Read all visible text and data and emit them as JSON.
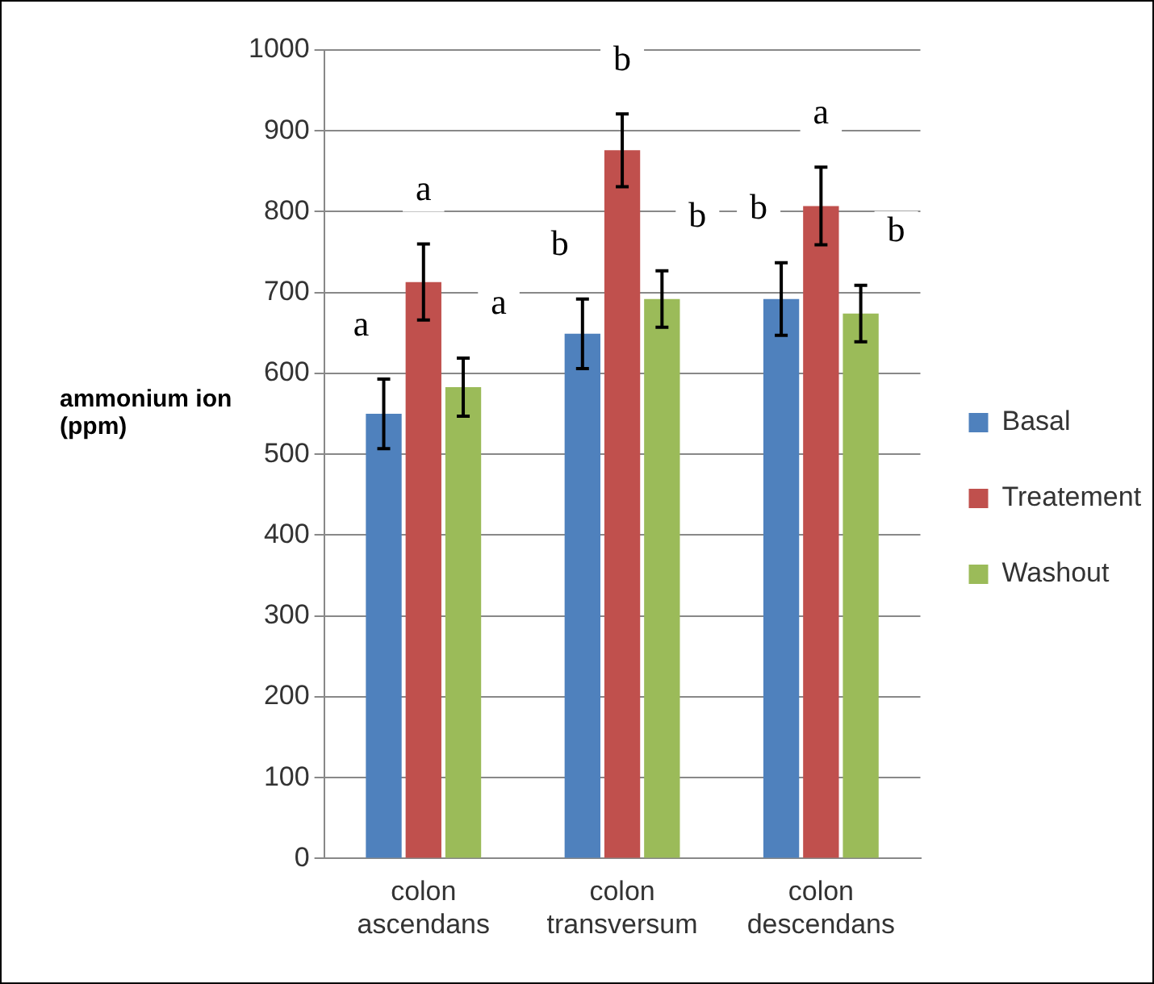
{
  "chart_data": {
    "type": "bar",
    "ylabel": "ammonium ion (ppm)",
    "categories": [
      "colon ascendans",
      "colon transversum",
      "colon descendans"
    ],
    "series": [
      {
        "name": "Basal",
        "color": "#4f81bd",
        "values": [
          550,
          649,
          692
        ],
        "errors": [
          43,
          43,
          45
        ]
      },
      {
        "name": "Treatement",
        "color": "#c0504d",
        "values": [
          713,
          876,
          807
        ],
        "errors": [
          47,
          45,
          48
        ]
      },
      {
        "name": "Washout",
        "color": "#9bbb59",
        "values": [
          583,
          692,
          674
        ],
        "errors": [
          36,
          35,
          35
        ]
      }
    ],
    "ylim": [
      0,
      1000
    ],
    "yticks": [
      0,
      100,
      200,
      300,
      400,
      500,
      600,
      700,
      800,
      900,
      1000
    ],
    "grid": "y",
    "legend": "right",
    "annotations": [
      "a",
      "a",
      "a",
      "b",
      "b",
      "b",
      "b",
      "a",
      "b"
    ]
  }
}
